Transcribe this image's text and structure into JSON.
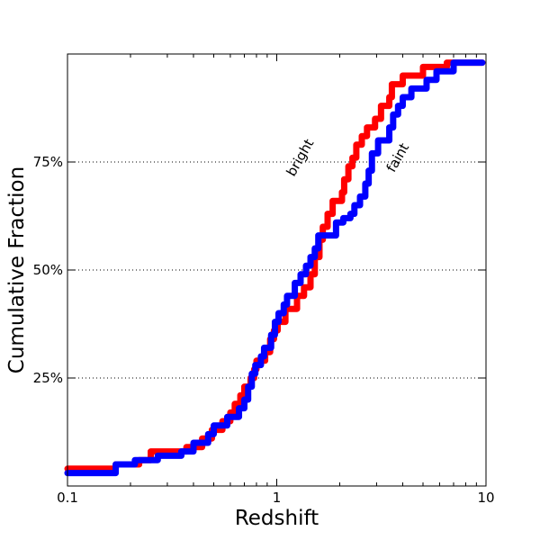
{
  "chart_data": {
    "type": "line",
    "title": "",
    "xlabel": "Redshift",
    "ylabel": "Cumulative Fraction",
    "x_scale": "log",
    "xlim": [
      0.1,
      10
    ],
    "ylim": [
      0.0,
      1.0
    ],
    "x_ticks": [
      {
        "value": 0.1,
        "label": "0.1"
      },
      {
        "value": 1,
        "label": "1"
      },
      {
        "value": 10,
        "label": "10"
      }
    ],
    "y_ticks": [
      {
        "value": 0.25,
        "label": "25%"
      },
      {
        "value": 0.5,
        "label": "50%"
      },
      {
        "value": 0.75,
        "label": "75%"
      }
    ],
    "grid": {
      "y": true,
      "x": false,
      "style": "dotted"
    },
    "series": [
      {
        "color": "#ff0000",
        "step": true,
        "points": [
          [
            0.1,
            0.04
          ],
          [
            0.16,
            0.04
          ],
          [
            0.17,
            0.05
          ],
          [
            0.22,
            0.06
          ],
          [
            0.25,
            0.08
          ],
          [
            0.37,
            0.09
          ],
          [
            0.44,
            0.11
          ],
          [
            0.49,
            0.13
          ],
          [
            0.55,
            0.15
          ],
          [
            0.6,
            0.17
          ],
          [
            0.63,
            0.19
          ],
          [
            0.67,
            0.21
          ],
          [
            0.7,
            0.23
          ],
          [
            0.75,
            0.25
          ],
          [
            0.78,
            0.27
          ],
          [
            0.8,
            0.29
          ],
          [
            0.88,
            0.31
          ],
          [
            0.93,
            0.34
          ],
          [
            0.97,
            0.36
          ],
          [
            1.01,
            0.38
          ],
          [
            1.1,
            0.41
          ],
          [
            1.25,
            0.44
          ],
          [
            1.35,
            0.46
          ],
          [
            1.45,
            0.49
          ],
          [
            1.52,
            0.53
          ],
          [
            1.6,
            0.57
          ],
          [
            1.66,
            0.6
          ],
          [
            1.75,
            0.63
          ],
          [
            1.85,
            0.66
          ],
          [
            2.05,
            0.68
          ],
          [
            2.1,
            0.71
          ],
          [
            2.2,
            0.74
          ],
          [
            2.3,
            0.76
          ],
          [
            2.4,
            0.79
          ],
          [
            2.55,
            0.81
          ],
          [
            2.7,
            0.83
          ],
          [
            2.95,
            0.85
          ],
          [
            3.15,
            0.88
          ],
          [
            3.45,
            0.9
          ],
          [
            3.55,
            0.93
          ],
          [
            4.0,
            0.95
          ],
          [
            5.0,
            0.97
          ],
          [
            6.5,
            0.98
          ],
          [
            9.6,
            0.98
          ]
        ]
      },
      {
        "color": "#0000ff",
        "step": true,
        "points": [
          [
            0.1,
            0.03
          ],
          [
            0.16,
            0.03
          ],
          [
            0.17,
            0.05
          ],
          [
            0.21,
            0.06
          ],
          [
            0.27,
            0.07
          ],
          [
            0.35,
            0.08
          ],
          [
            0.4,
            0.1
          ],
          [
            0.47,
            0.12
          ],
          [
            0.5,
            0.14
          ],
          [
            0.58,
            0.16
          ],
          [
            0.66,
            0.18
          ],
          [
            0.7,
            0.2
          ],
          [
            0.73,
            0.23
          ],
          [
            0.76,
            0.26
          ],
          [
            0.79,
            0.28
          ],
          [
            0.84,
            0.3
          ],
          [
            0.87,
            0.32
          ],
          [
            0.94,
            0.35
          ],
          [
            0.98,
            0.38
          ],
          [
            1.02,
            0.4
          ],
          [
            1.08,
            0.42
          ],
          [
            1.12,
            0.44
          ],
          [
            1.22,
            0.47
          ],
          [
            1.3,
            0.49
          ],
          [
            1.38,
            0.51
          ],
          [
            1.45,
            0.53
          ],
          [
            1.52,
            0.55
          ],
          [
            1.58,
            0.58
          ],
          [
            1.82,
            0.58
          ],
          [
            1.92,
            0.61
          ],
          [
            2.08,
            0.62
          ],
          [
            2.25,
            0.63
          ],
          [
            2.35,
            0.65
          ],
          [
            2.5,
            0.67
          ],
          [
            2.65,
            0.7
          ],
          [
            2.75,
            0.73
          ],
          [
            2.85,
            0.77
          ],
          [
            3.05,
            0.8
          ],
          [
            3.45,
            0.83
          ],
          [
            3.6,
            0.86
          ],
          [
            3.8,
            0.88
          ],
          [
            4.0,
            0.9
          ],
          [
            4.4,
            0.92
          ],
          [
            5.2,
            0.94
          ],
          [
            5.8,
            0.96
          ],
          [
            7.0,
            0.98
          ],
          [
            9.6,
            0.98
          ]
        ]
      }
    ],
    "annotations": [
      {
        "text": "bright",
        "x": 1.35,
        "y": 0.755,
        "rotation_deg": -60
      },
      {
        "text": "faint",
        "x": 3.95,
        "y": 0.755,
        "rotation_deg": -60
      }
    ]
  }
}
